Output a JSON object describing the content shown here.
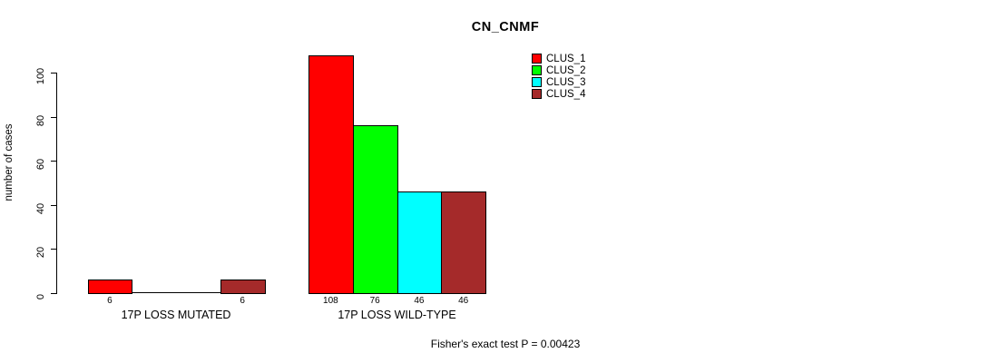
{
  "chart_data": {
    "type": "bar",
    "title": "CN_CNMF",
    "ylabel": "number of cases",
    "xlabel": "",
    "ylim": [
      0,
      100
    ],
    "yticks": [
      0,
      20,
      40,
      60,
      80,
      100
    ],
    "grid": false,
    "legend_position": "top-right",
    "categories": [
      "17P LOSS MUTATED",
      "17P LOSS WILD-TYPE"
    ],
    "series": [
      {
        "name": "CLUS_1",
        "color": "#FF0000",
        "values": [
          6,
          108
        ]
      },
      {
        "name": "CLUS_2",
        "color": "#00FF00",
        "values": [
          0,
          76
        ]
      },
      {
        "name": "CLUS_3",
        "color": "#00FFFF",
        "values": [
          0,
          46
        ]
      },
      {
        "name": "CLUS_4",
        "color": "#A52A2A",
        "values": [
          6,
          46
        ]
      }
    ],
    "bar_value_labels": [
      [
        "6",
        "",
        "",
        "6"
      ],
      [
        "108",
        "76",
        "46",
        "46"
      ]
    ],
    "annotation": "Fisher's exact test P = 0.00423"
  },
  "legend": {
    "items": [
      {
        "label": "CLUS_1",
        "color": "#FF0000"
      },
      {
        "label": "CLUS_2",
        "color": "#00FF00"
      },
      {
        "label": "CLUS_3",
        "color": "#00FFFF"
      },
      {
        "label": "CLUS_4",
        "color": "#A52A2A"
      }
    ]
  }
}
